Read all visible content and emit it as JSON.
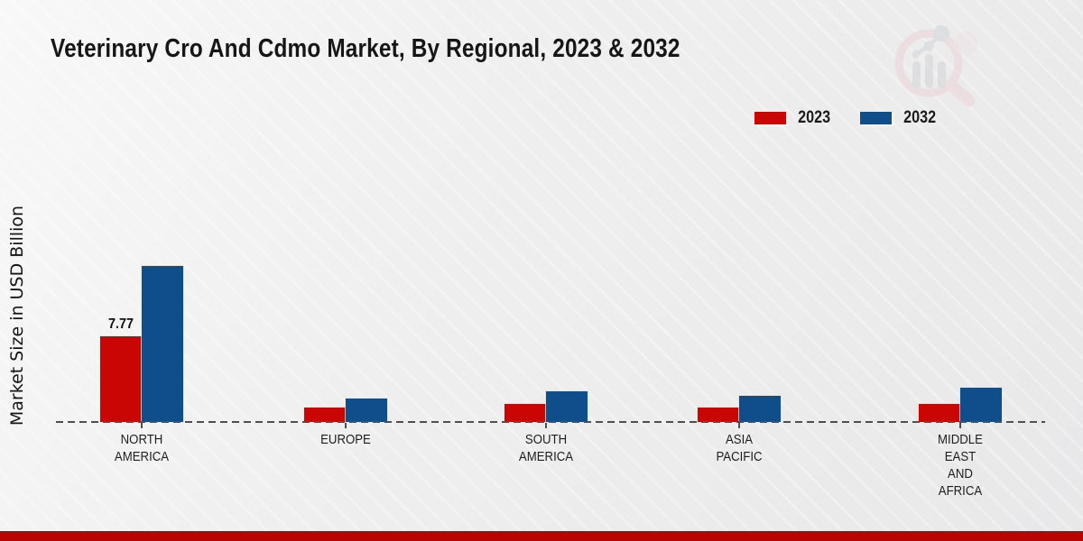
{
  "header": {
    "title": "Veterinary Cro And Cdmo Market, By Regional, 2023 & 2032"
  },
  "axes": {
    "y_label": "Market Size in USD Billion"
  },
  "legend": {
    "items": [
      {
        "label": "2023",
        "color": "#c90603"
      },
      {
        "label": "2032",
        "color": "#0f4e8a"
      }
    ]
  },
  "theme": {
    "series_2023_color": "#c90603",
    "series_2032_color": "#0f4e8a",
    "footer_accent_color": "#b90404",
    "baseline_color": "#4f4f4f"
  },
  "chart_data": {
    "type": "bar",
    "title": "Veterinary Cro And Cdmo Market, By Regional, 2023 & 2032",
    "xlabel": "",
    "ylabel": "Market Size in USD Billion",
    "units": "USD Billion",
    "grid": false,
    "legend_position": "top-right",
    "baseline_value": 0,
    "baseline_style": "dashed",
    "ylim": [
      0,
      16
    ],
    "categories": [
      "NORTH AMERICA",
      "EUROPE",
      "SOUTH AMERICA",
      "ASIA PACIFIC",
      "MIDDLE EAST AND AFRICA"
    ],
    "category_label_lines": [
      "NORTH\nAMERICA",
      "EUROPE",
      "SOUTH\nAMERICA",
      "ASIA\nPACIFIC",
      "MIDDLE\nEAST\nAND\nAFRICA"
    ],
    "series": [
      {
        "name": "2023",
        "color": "#c90603",
        "values": [
          7.77,
          1.28,
          1.6,
          1.3,
          1.65
        ]
      },
      {
        "name": "2032",
        "color": "#0f4e8a",
        "values": [
          14.15,
          2.15,
          2.8,
          2.35,
          3.1
        ]
      }
    ],
    "data_labels": [
      {
        "series": "2023",
        "category": "NORTH AMERICA",
        "text": "7.77"
      }
    ]
  }
}
